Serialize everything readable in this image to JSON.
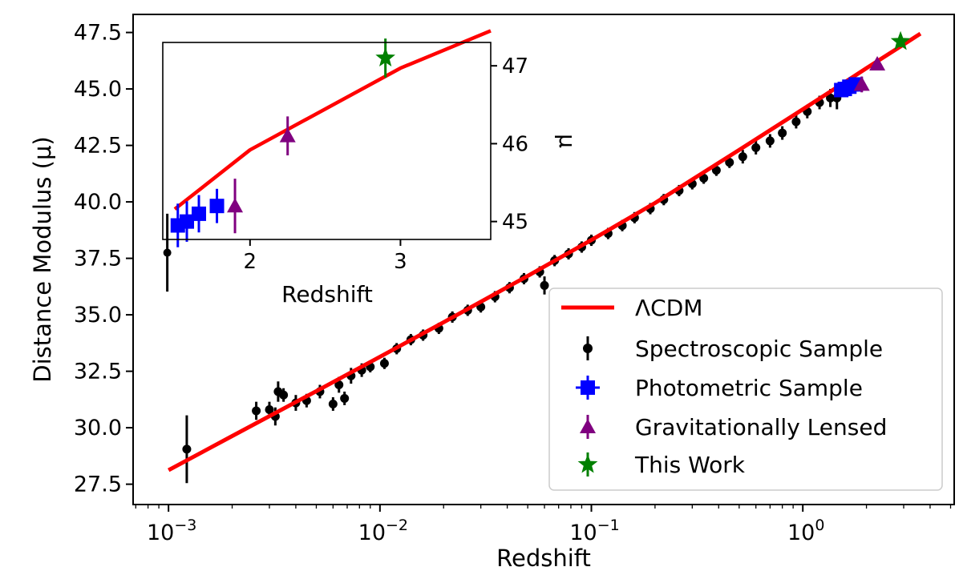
{
  "chart_data": [
    {
      "type": "scatter",
      "xlabel": "Redshift",
      "ylabel": "Distance Modulus (μ)",
      "xscale": "log",
      "xlim": [
        0.00068,
        5.2
      ],
      "ylim": [
        26.6,
        48.3
      ],
      "x_ticks": [
        {
          "value": 0.001,
          "base": "10",
          "exp": "−3"
        },
        {
          "value": 0.01,
          "base": "10",
          "exp": "−2"
        },
        {
          "value": 0.1,
          "base": "10",
          "exp": "−1"
        },
        {
          "value": 1,
          "base": "10",
          "exp": "0"
        }
      ],
      "y_ticks": [
        "27.5",
        "30.0",
        "32.5",
        "35.0",
        "37.5",
        "40.0",
        "42.5",
        "45.0",
        "47.5"
      ],
      "legend_position": "lower-right",
      "legend": [
        "ΛCDM",
        "Spectroscopic Sample",
        "Photometric Sample",
        "Gravitationally Lensed",
        "This Work"
      ],
      "series": [
        {
          "name": "ΛCDM",
          "kind": "line",
          "color": "#ff0000",
          "x": [
            0.001,
            0.002,
            0.005,
            0.01,
            0.02,
            0.05,
            0.1,
            0.2,
            0.5,
            1.0,
            1.5,
            2.0,
            3.0,
            3.6
          ],
          "y": [
            28.12,
            29.63,
            31.62,
            33.14,
            34.67,
            36.72,
            38.31,
            39.95,
            42.3,
            44.1,
            45.16,
            45.92,
            46.97,
            47.45
          ]
        },
        {
          "name": "Spectroscopic Sample",
          "kind": "errorbar",
          "color": "#000000",
          "x": [
            0.00122,
            0.0026,
            0.003,
            0.0032,
            0.0033,
            0.0035,
            0.004,
            0.0045,
            0.0052,
            0.006,
            0.0064,
            0.0068,
            0.0073,
            0.0082,
            0.009,
            0.0105,
            0.012,
            0.014,
            0.016,
            0.019,
            0.022,
            0.026,
            0.03,
            0.035,
            0.041,
            0.048,
            0.057,
            0.06,
            0.067,
            0.078,
            0.09,
            0.1,
            0.12,
            0.14,
            0.16,
            0.19,
            0.22,
            0.26,
            0.3,
            0.34,
            0.39,
            0.45,
            0.52,
            0.6,
            0.7,
            0.8,
            0.93,
            1.05,
            1.2,
            1.35,
            1.45
          ],
          "y": [
            29.05,
            30.75,
            30.8,
            30.5,
            31.6,
            31.45,
            31.1,
            31.2,
            31.6,
            31.05,
            31.9,
            31.3,
            32.3,
            32.55,
            32.7,
            32.85,
            33.5,
            33.9,
            34.1,
            34.4,
            34.9,
            35.2,
            35.35,
            35.8,
            36.2,
            36.6,
            36.9,
            36.3,
            37.4,
            37.7,
            38.0,
            38.3,
            38.6,
            38.95,
            39.3,
            39.7,
            40.1,
            40.5,
            40.8,
            41.05,
            41.4,
            41.75,
            42.0,
            42.4,
            42.7,
            43.05,
            43.55,
            44.0,
            44.4,
            44.6,
            44.6
          ],
          "yerr": [
            1.5,
            0.4,
            0.35,
            0.4,
            0.45,
            0.3,
            0.35,
            0.3,
            0.3,
            0.3,
            0.35,
            0.3,
            0.35,
            0.3,
            0.25,
            0.25,
            0.25,
            0.25,
            0.25,
            0.25,
            0.25,
            0.25,
            0.25,
            0.25,
            0.25,
            0.25,
            0.25,
            0.4,
            0.25,
            0.25,
            0.25,
            0.25,
            0.25,
            0.25,
            0.25,
            0.25,
            0.25,
            0.25,
            0.25,
            0.25,
            0.25,
            0.25,
            0.3,
            0.3,
            0.3,
            0.3,
            0.3,
            0.3,
            0.3,
            0.4,
            0.5
          ]
        },
        {
          "name": "Photometric Sample",
          "kind": "errorbar",
          "color": "#0000ff",
          "x": [
            1.52,
            1.58,
            1.66,
            1.78
          ],
          "y": [
            44.95,
            45.0,
            45.1,
            45.2
          ],
          "yerr": [
            0.28,
            0.26,
            0.24,
            0.22
          ],
          "xerr": [
            0.04,
            0.04,
            0.05,
            0.05
          ]
        },
        {
          "name": "Gravitationally Lensed",
          "kind": "errorbar",
          "color": "#800080",
          "x": [
            1.9,
            2.25
          ],
          "y": [
            45.2,
            46.1
          ],
          "yerr": [
            0.35,
            0.25
          ]
        },
        {
          "name": "This Work",
          "kind": "errorbar",
          "color": "#008000",
          "x": [
            2.9
          ],
          "y": [
            47.1
          ],
          "yerr": [
            0.25
          ]
        }
      ]
    },
    {
      "type": "scatter",
      "role": "inset",
      "xlabel": "Redshift",
      "ylabel": "μ",
      "xlim": [
        1.42,
        3.6
      ],
      "ylim": [
        44.77,
        47.3
      ],
      "x_ticks": [
        "2",
        "3"
      ],
      "y_ticks": [
        "45",
        "46",
        "47"
      ],
      "series_ref": [
        "ΛCDM",
        "Spectroscopic Sample",
        "Photometric Sample",
        "Gravitationally Lensed",
        "This Work"
      ]
    }
  ]
}
